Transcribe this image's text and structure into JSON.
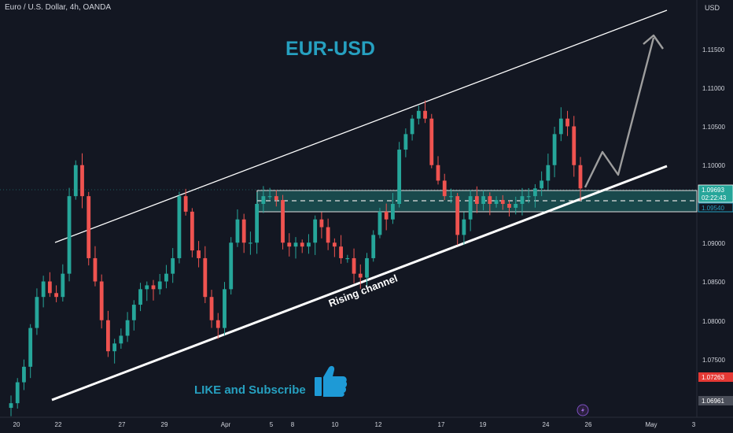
{
  "header": {
    "symbol": "Euro / U.S. Dollar, 4h, OANDA",
    "currency": "USD"
  },
  "chart_data": {
    "type": "candlestick",
    "title": "EUR-USD",
    "instrument": "EUR/USD",
    "timeframe": "4h",
    "source": "OANDA",
    "ylim": [
      1.068,
      1.12
    ],
    "y_ticks": [
      "1.11500",
      "1.11000",
      "1.10500",
      "1.10000",
      "1.09000",
      "1.08500",
      "1.08000",
      "1.07500"
    ],
    "x_ticks": [
      "20",
      "22",
      "27",
      "29",
      "Apr",
      "5",
      "8",
      "10",
      "12",
      "17",
      "19",
      "24",
      "26",
      "May",
      "3"
    ],
    "price_labels": {
      "current": "1.09693",
      "countdown": "02:22:43",
      "zone_bottom_price": "1.09540",
      "red_marker": "1.07263",
      "last_marker": "1.06961"
    },
    "up_color": "#26a69a",
    "down_color": "#ef5350",
    "candles_close_path": [
      1.0693,
      1.072,
      1.074,
      1.079,
      1.083,
      1.085,
      1.0835,
      1.083,
      1.086,
      1.096,
      1.1,
      1.096,
      1.088,
      1.085,
      1.08,
      1.076,
      1.077,
      1.078,
      1.08,
      1.082,
      1.084,
      1.0845,
      1.084,
      1.085,
      1.086,
      1.088,
      1.096,
      1.094,
      1.089,
      1.088,
      1.083,
      1.08,
      1.079,
      1.084,
      1.09,
      1.093,
      1.09,
      1.09,
      1.095,
      1.096,
      1.096,
      1.0955,
      1.09,
      1.0895,
      1.09,
      1.0895,
      1.09,
      1.093,
      1.092,
      1.09,
      1.0895,
      1.088,
      1.088,
      1.086,
      1.0855,
      1.088,
      1.091,
      1.094,
      1.093,
      1.095,
      1.102,
      1.104,
      1.106,
      1.107,
      1.106,
      1.1,
      1.098,
      1.096,
      1.096,
      1.091,
      1.093,
      1.096,
      1.095,
      1.096,
      1.095,
      1.0955,
      1.095,
      1.0945,
      1.095,
      1.096,
      1.096,
      1.097,
      1.098,
      1.1,
      1.104,
      1.106,
      1.105,
      1.1,
      1.097
    ],
    "zone": {
      "top": 1.0969,
      "bottom": 1.0942,
      "mid": 1.0955
    },
    "annotations": {
      "channel_label": "Rising channel",
      "cta_text": "LIKE and Subscribe"
    },
    "grid": false
  }
}
